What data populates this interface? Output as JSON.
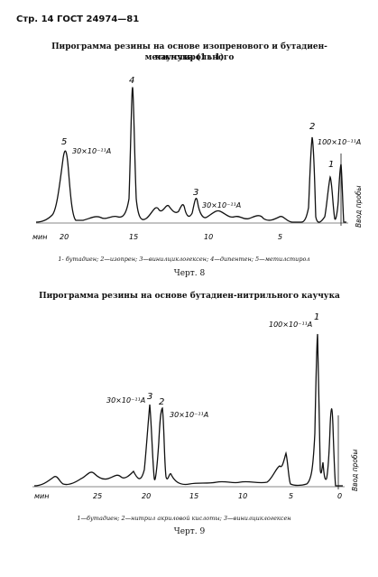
{
  "header": "Стр. 14 ГОСТ 24974—81",
  "fig8": {
    "title_line1": "Пирограмма резины на основе изопренового и бутадиен-метилстирольного",
    "title_line2": "каучука (1 : 1)",
    "peaks": [
      "5",
      "4",
      "3",
      "2",
      "1"
    ],
    "annotations": [
      "30×10⁻¹¹A",
      "30×10⁻¹¹A",
      "100×10⁻¹¹A"
    ],
    "axis_unit": "мин",
    "ticks": [
      "20",
      "15",
      "10",
      "5"
    ],
    "injection": "Ввод пробы",
    "legend": "1- бутадиен; 2—изопрен; 3—винилциклогексен; 4—дипентен; 5—метилстирол",
    "chert": "Черт. 8"
  },
  "fig9": {
    "title": "Пирограмма резины на основе бутадиен-нитрильного каучука",
    "peaks": [
      "1",
      "3",
      "2"
    ],
    "annotations": [
      "100×10⁻¹¹A",
      "30×10⁻¹¹A",
      "30×10⁻¹¹A"
    ],
    "axis_unit": "мин",
    "ticks": [
      "25",
      "20",
      "15",
      "10",
      "5",
      "0"
    ],
    "injection": "Ввод пробы",
    "legend": "1—бутадиен; 2—нитрил акриловой кислоты; 3—винилциклогексен",
    "chert": "Черт. 9"
  }
}
